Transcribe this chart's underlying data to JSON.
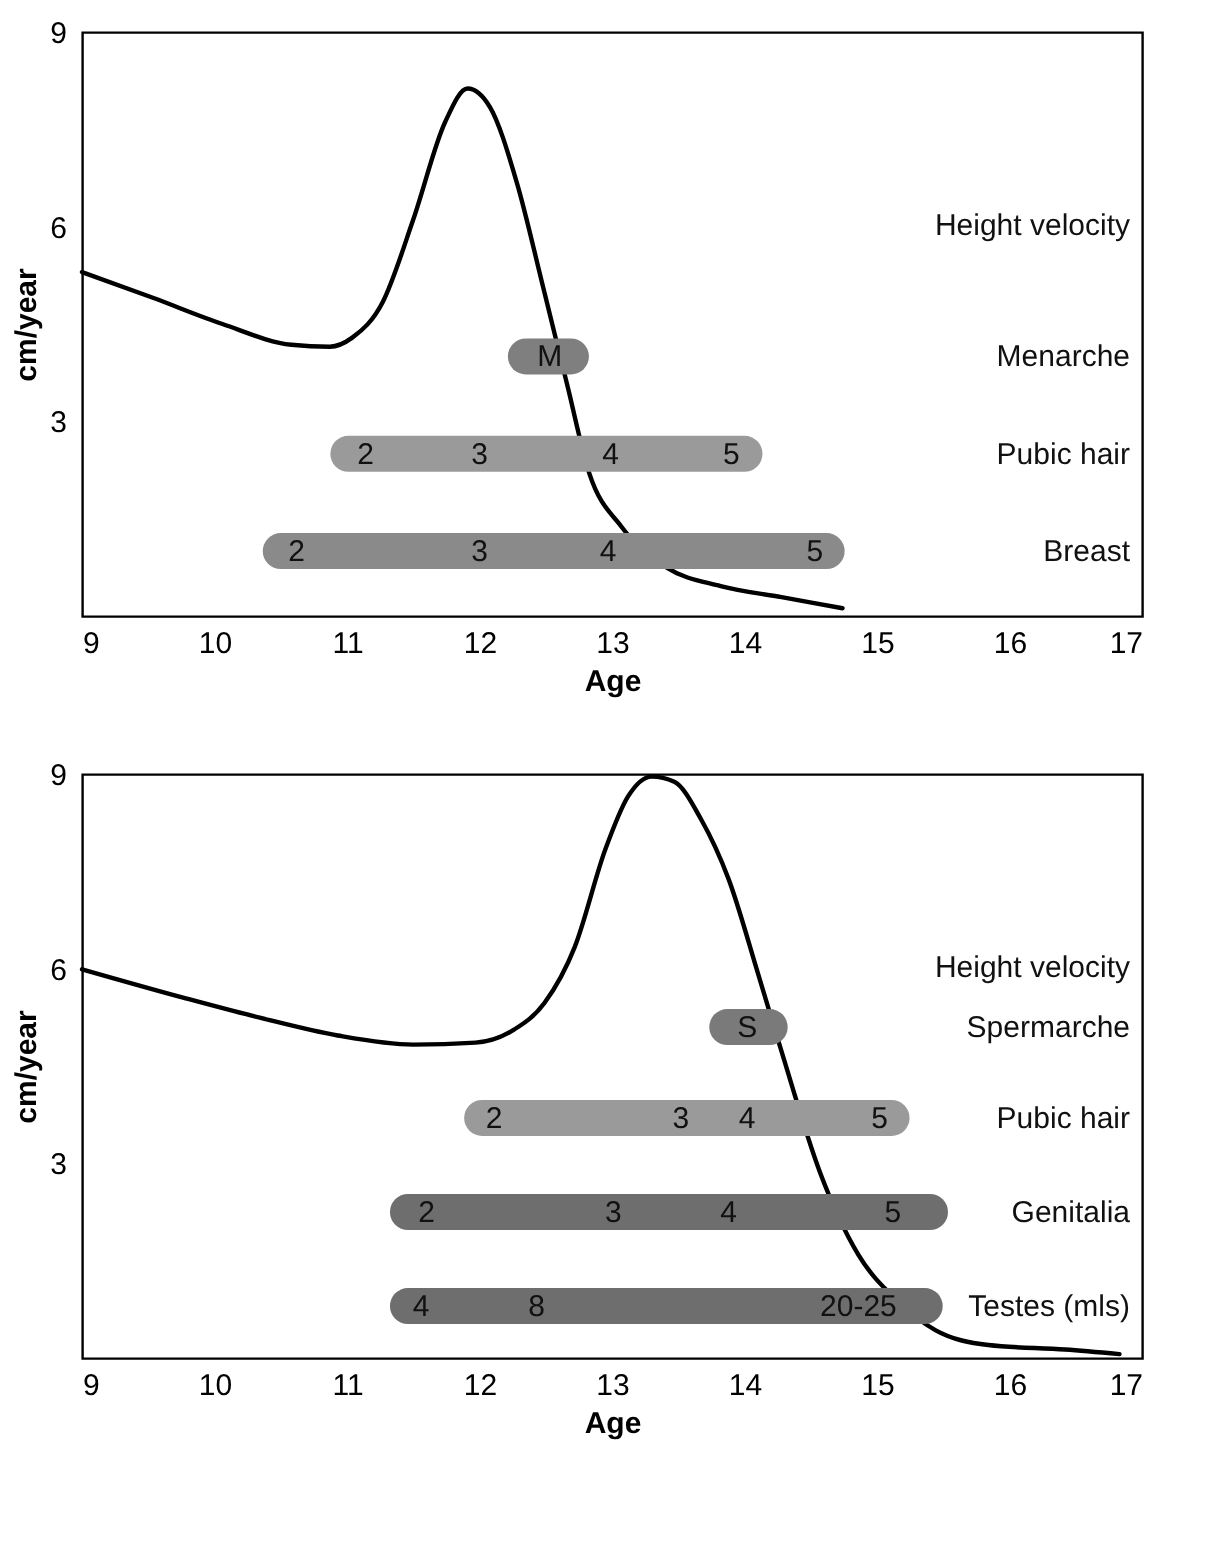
{
  "chart_data": [
    {
      "type": "line",
      "xlabel": "Age",
      "ylabel": "cm/year",
      "xlim": [
        9,
        17
      ],
      "ylim": [
        0,
        9
      ],
      "xticks": [
        9,
        10,
        11,
        12,
        13,
        14,
        15,
        16,
        17
      ],
      "yticks": [
        3,
        6,
        9
      ],
      "series": [
        {
          "color": "#000000",
          "x": [
            9.0,
            9.54,
            10.06,
            10.58,
            10.87,
            11.04,
            11.27,
            11.5,
            11.74,
            11.91,
            12.08,
            12.28,
            12.48,
            12.66,
            12.83,
            13.07,
            13.41,
            13.82,
            14.28,
            14.74
          ],
          "values": [
            5.3,
            4.9,
            4.5,
            4.18,
            4.15,
            4.29,
            4.84,
            6.11,
            7.61,
            8.13,
            7.84,
            6.69,
            5.07,
            3.58,
            2.19,
            1.38,
            0.75,
            0.46,
            0.29,
            0.12
          ]
        },
        {
          "name": "Menarche",
          "color": "#7f7f7f",
          "x": [
            12.35,
            12.69
          ],
          "values": [
            4.0,
            4.0
          ]
        },
        {
          "name": "Pubic hair",
          "color": "#9a9a9a",
          "x": [
            11.01,
            14.0
          ],
          "values": [
            2.5,
            2.5
          ]
        },
        {
          "name": "Breast",
          "color": "#8a8a8a",
          "x": [
            10.5,
            14.62
          ],
          "values": [
            1.0,
            1.0
          ]
        }
      ],
      "annotations": [
        "Height velocity",
        {
          "text": "M",
          "x": 12.53,
          "y": 4.0
        },
        {
          "text": "2",
          "x": 11.14,
          "y": 2.5
        },
        {
          "text": "3",
          "x": 12.0,
          "y": 2.5
        },
        {
          "text": "4",
          "x": 12.99,
          "y": 2.5
        },
        {
          "text": "5",
          "x": 13.9,
          "y": 2.5
        },
        {
          "text": "2",
          "x": 10.62,
          "y": 1.0
        },
        {
          "text": "3",
          "x": 12.0,
          "y": 1.0
        },
        {
          "text": "4",
          "x": 12.97,
          "y": 1.0
        },
        {
          "text": "5",
          "x": 14.53,
          "y": 1.0
        }
      ]
    },
    {
      "type": "line",
      "xlabel": "Age",
      "ylabel": "cm/year",
      "xlim": [
        9,
        17
      ],
      "ylim": [
        0,
        9
      ],
      "xticks": [
        9,
        10,
        11,
        12,
        13,
        14,
        15,
        16,
        17
      ],
      "yticks": [
        3,
        6,
        9
      ],
      "series": [
        {
          "color": "#000000",
          "x": [
            9.0,
            9.77,
            10.35,
            10.93,
            11.5,
            11.97,
            12.26,
            12.49,
            12.72,
            12.95,
            13.12,
            13.3,
            13.47,
            13.67,
            13.88,
            14.11,
            14.28,
            14.57,
            14.86,
            15.15,
            15.44,
            15.84,
            16.42,
            16.83
          ],
          "values": [
            5.99,
            5.55,
            5.24,
            4.97,
            4.83,
            4.86,
            5.06,
            5.47,
            6.34,
            7.84,
            8.65,
            8.96,
            8.88,
            8.31,
            7.38,
            5.87,
            4.72,
            2.86,
            1.59,
            0.89,
            0.43,
            0.2,
            0.13,
            0.06
          ]
        },
        {
          "name": "Spermarche",
          "color": "#7a7a7a",
          "x": [
            13.87,
            14.19
          ],
          "values": [
            5.1,
            5.1
          ]
        },
        {
          "name": "Pubic hair",
          "color": "#9a9a9a",
          "x": [
            12.02,
            15.11
          ],
          "values": [
            3.7,
            3.7
          ]
        },
        {
          "name": "Genitalia",
          "color": "#6e6e6e",
          "x": [
            11.46,
            15.4
          ],
          "values": [
            2.25,
            2.25
          ]
        },
        {
          "name": "Testes (mls)",
          "color": "#6e6e6e",
          "x": [
            11.46,
            15.36
          ],
          "values": [
            0.8,
            0.8
          ]
        }
      ],
      "annotations": [
        "Height velocity",
        {
          "text": "S",
          "x": 14.02,
          "y": 5.1
        },
        {
          "text": "2",
          "x": 12.11,
          "y": 3.7
        },
        {
          "text": "3",
          "x": 13.52,
          "y": 3.7
        },
        {
          "text": "4",
          "x": 14.02,
          "y": 3.7
        },
        {
          "text": "5",
          "x": 15.02,
          "y": 3.7
        },
        {
          "text": "2",
          "x": 11.6,
          "y": 2.25
        },
        {
          "text": "3",
          "x": 13.01,
          "y": 2.25
        },
        {
          "text": "4",
          "x": 13.88,
          "y": 2.25
        },
        {
          "text": "5",
          "x": 15.12,
          "y": 2.25
        },
        {
          "text": "4",
          "x": 11.56,
          "y": 0.8
        },
        {
          "text": "8",
          "x": 12.43,
          "y": 0.8
        },
        {
          "text": "20-25",
          "x": 14.86,
          "y": 0.8
        }
      ]
    }
  ]
}
